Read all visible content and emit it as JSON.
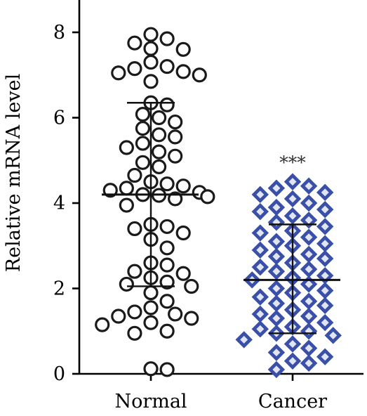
{
  "chart_data": {
    "type": "scatter",
    "ylabel": "Relative mRNA level",
    "xlabel": "",
    "ylim": [
      0,
      8.7
    ],
    "yticks": [
      "0",
      "2",
      "4",
      "6",
      "8"
    ],
    "categories": [
      "Normal",
      "Cancer"
    ],
    "significance": "***",
    "series": [
      {
        "category": "Normal",
        "marker": "circle",
        "color": "#1a1a1a",
        "fill": "#ffffff",
        "mean": 4.2,
        "sd_upper": 6.35,
        "sd_lower": 2.05,
        "values": [
          7.95,
          7.85,
          7.75,
          7.62,
          7.6,
          7.3,
          7.2,
          7.15,
          7.08,
          7.05,
          7.0,
          6.85,
          6.35,
          6.3,
          6.08,
          6.0,
          5.9,
          5.75,
          5.6,
          5.55,
          5.4,
          5.3,
          5.2,
          5.1,
          4.95,
          4.85,
          4.65,
          4.5,
          4.45,
          4.4,
          4.35,
          4.3,
          4.25,
          4.2,
          4.18,
          4.15,
          4.1,
          3.95,
          3.5,
          3.45,
          3.4,
          3.3,
          3.15,
          2.95,
          2.6,
          2.55,
          2.4,
          2.35,
          2.25,
          2.15,
          2.1,
          2.05,
          1.9,
          1.7,
          1.55,
          1.45,
          1.4,
          1.35,
          1.3,
          1.2,
          1.15,
          1.0,
          0.95,
          0.12,
          0.1
        ]
      },
      {
        "category": "Cancer",
        "marker": "diamond",
        "color": "#3a4fa8",
        "fill": "#ffffff",
        "mean": 2.2,
        "sd_upper": 3.5,
        "sd_lower": 0.95,
        "values": [
          4.5,
          4.4,
          4.35,
          4.25,
          4.2,
          4.1,
          4.0,
          3.9,
          3.85,
          3.8,
          3.7,
          3.6,
          3.55,
          3.45,
          3.35,
          3.3,
          3.2,
          3.1,
          3.05,
          3.0,
          2.9,
          2.8,
          2.75,
          2.7,
          2.6,
          2.5,
          2.45,
          2.4,
          2.3,
          2.25,
          2.2,
          2.1,
          2.0,
          1.95,
          1.9,
          1.8,
          1.7,
          1.65,
          1.6,
          1.5,
          1.4,
          1.35,
          1.3,
          1.2,
          1.1,
          1.05,
          1.0,
          0.95,
          0.9,
          0.8,
          0.7,
          0.6,
          0.5,
          0.4,
          0.3,
          0.25,
          0.1
        ]
      }
    ]
  }
}
